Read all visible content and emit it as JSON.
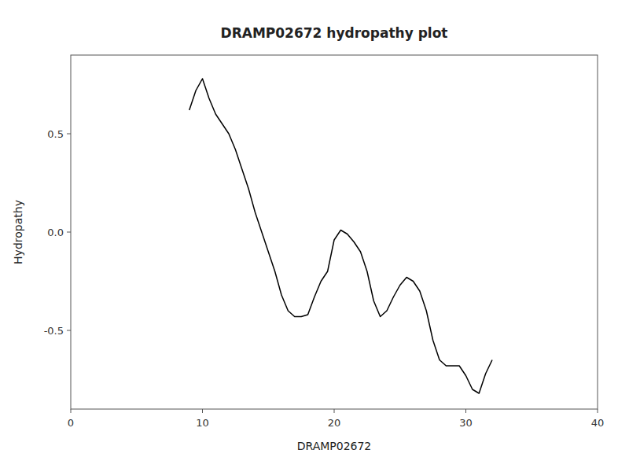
{
  "chart_data": {
    "type": "line",
    "title": "DRAMP02672 hydropathy plot",
    "xlabel": "DRAMP02672",
    "ylabel": "Hydropathy",
    "color": "black",
    "grid": false,
    "xlim": [
      0,
      40
    ],
    "ylim": [
      -0.9,
      0.9
    ],
    "xticks": [
      0,
      10,
      20,
      30,
      40
    ],
    "yticks": [
      -0.5,
      {
        "value": 0.0,
        "label": "0.0"
      },
      0.5
    ],
    "x": [
      9,
      9.5,
      10,
      10.5,
      11,
      11.5,
      12,
      12.5,
      13,
      13.5,
      14,
      14.5,
      15,
      15.5,
      16,
      16.5,
      17,
      17.5,
      18,
      18.5,
      19,
      19.5,
      20,
      20.5,
      21,
      21.5,
      22,
      22.5,
      23,
      23.5,
      24,
      24.5,
      25,
      25.5,
      26,
      26.5,
      27,
      27.5,
      28,
      28.5,
      29,
      29.5,
      30,
      30.5,
      31,
      31.5,
      32
    ],
    "values": [
      0.62,
      0.72,
      0.78,
      0.68,
      0.6,
      0.55,
      0.5,
      0.42,
      0.32,
      0.22,
      0.1,
      0.0,
      -0.1,
      -0.2,
      -0.32,
      -0.4,
      -0.43,
      -0.43,
      -0.42,
      -0.33,
      -0.25,
      -0.2,
      -0.04,
      0.01,
      -0.01,
      -0.05,
      -0.1,
      -0.2,
      -0.35,
      -0.43,
      -0.4,
      -0.33,
      -0.27,
      -0.23,
      -0.25,
      -0.3,
      -0.4,
      -0.55,
      -0.65,
      -0.68,
      -0.68,
      -0.68,
      -0.73,
      -0.8,
      -0.82,
      -0.72,
      -0.65
    ]
  }
}
